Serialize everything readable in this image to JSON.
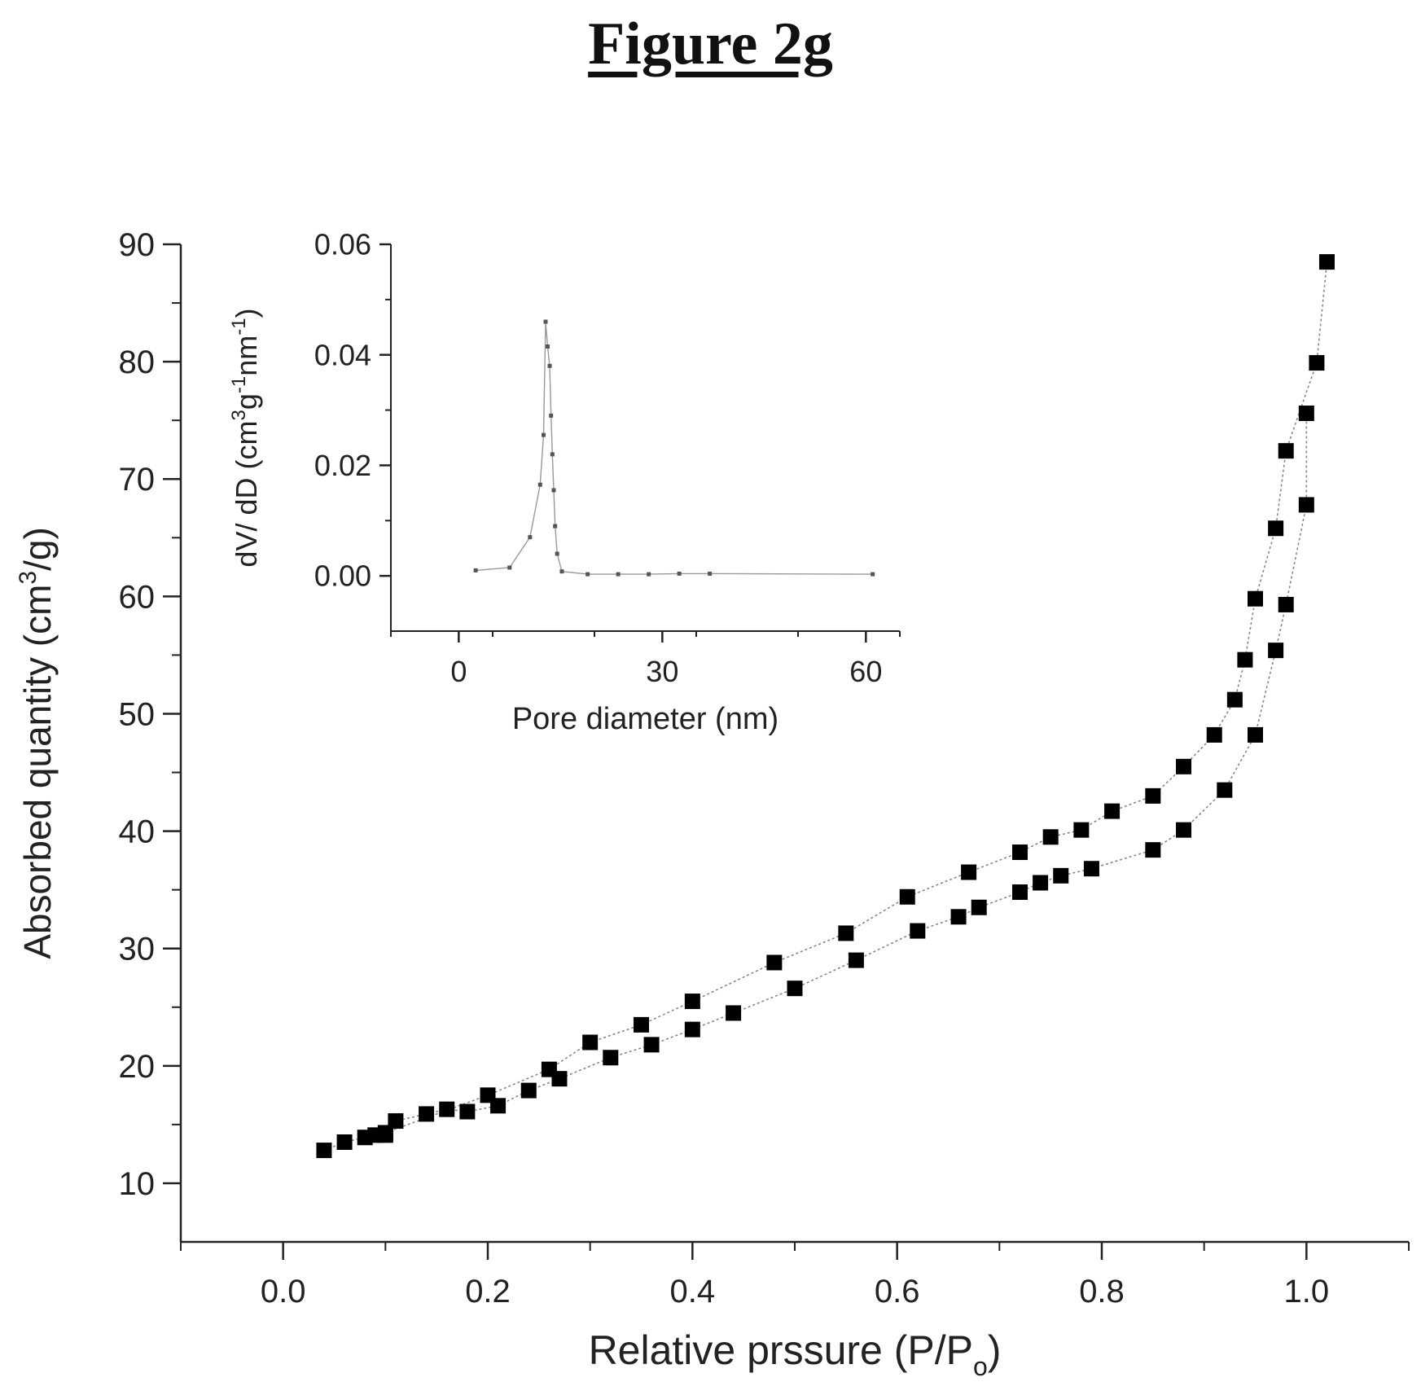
{
  "figure_title": "Figure 2g",
  "chart_data": [
    {
      "type": "line",
      "title": "",
      "xlabel": "Relative prssure (P/P",
      "xlabel_sub": "o",
      "xlabel_close": ")",
      "ylabel": "Absorbed quantity (cm",
      "ylabel_sup": "3",
      "ylabel_close": "/g)",
      "xlim": [
        -0.1,
        1.1
      ],
      "ylim": [
        5,
        90
      ],
      "xticks": [
        0.0,
        0.2,
        0.4,
        0.6,
        0.8,
        1.0
      ],
      "xtick_labels": [
        "0.0",
        "0.2",
        "0.4",
        "0.6",
        "0.8",
        "1.0"
      ],
      "yticks": [
        10,
        20,
        30,
        40,
        50,
        60,
        70,
        80,
        90
      ],
      "ytick_labels": [
        "10",
        "20",
        "30",
        "40",
        "50",
        "60",
        "70",
        "80",
        "90"
      ],
      "grid": false,
      "marker": "square",
      "color": "#000000",
      "series": [
        {
          "x": [
            0.04,
            0.06,
            0.08,
            0.09,
            0.1,
            0.2,
            0.26,
            0.3,
            0.35,
            0.4,
            0.48,
            0.55,
            0.61,
            0.67,
            0.72,
            0.75,
            0.78,
            0.81,
            0.85,
            0.88,
            0.91,
            0.93,
            0.94,
            0.95,
            0.97,
            0.98,
            1.01,
            1.02
          ],
          "y": [
            12.8,
            13.5,
            13.9,
            14.1,
            14.3,
            17.5,
            19.7,
            22.0,
            23.5,
            25.5,
            28.8,
            31.3,
            34.4,
            36.5,
            38.2,
            39.5,
            40.1,
            41.7,
            43.0,
            45.5,
            48.2,
            51.2,
            54.6,
            59.8,
            65.8,
            72.4,
            79.9,
            88.5
          ]
        },
        {
          "x": [
            0.1,
            0.11,
            0.14,
            0.16,
            0.18,
            0.21,
            0.24,
            0.27,
            0.32,
            0.36,
            0.4,
            0.44,
            0.5,
            0.56,
            0.62,
            0.66,
            0.68,
            0.72,
            0.74,
            0.76,
            0.79,
            0.85,
            0.88,
            0.92,
            0.95,
            0.97,
            0.98,
            1.0,
            1.0
          ],
          "y": [
            14.1,
            15.3,
            15.9,
            16.3,
            16.1,
            16.6,
            17.9,
            18.9,
            20.7,
            21.8,
            23.1,
            24.5,
            26.6,
            29.0,
            31.5,
            32.7,
            33.5,
            34.8,
            35.6,
            36.2,
            36.8,
            38.4,
            40.1,
            43.5,
            48.2,
            55.4,
            59.3,
            67.8,
            75.6
          ]
        }
      ]
    },
    {
      "type": "line",
      "title": "",
      "xlabel": "Pore diameter (nm)",
      "ylabel": "dV/ dD (cm",
      "ylabel_sup1": "3",
      "ylabel_mid": "g",
      "ylabel_sup2": "-1",
      "ylabel_mid2": "nm",
      "ylabel_sup3": "-1",
      "ylabel_close": ")",
      "xlim": [
        -10,
        65
      ],
      "ylim": [
        -0.01,
        0.06
      ],
      "xticks": [
        0,
        30,
        60
      ],
      "xtick_labels": [
        "0",
        "30",
        "60"
      ],
      "yticks": [
        0.0,
        0.02,
        0.04,
        0.06
      ],
      "ytick_labels": [
        "0.00",
        "0.02",
        "0.04",
        "0.06"
      ],
      "grid": false,
      "marker": "small-square",
      "color": "#555555",
      "series": [
        {
          "x": [
            2.5,
            7.5,
            10.5,
            12.0,
            12.5,
            12.8,
            13.1,
            13.4,
            13.6,
            13.8,
            14.0,
            14.2,
            14.5,
            15.2,
            19.0,
            23.5,
            28.0,
            32.5,
            37.0,
            61.0
          ],
          "y": [
            0.001,
            0.0015,
            0.007,
            0.0165,
            0.0255,
            0.046,
            0.0415,
            0.038,
            0.029,
            0.022,
            0.0155,
            0.009,
            0.004,
            0.0008,
            0.0003,
            0.0003,
            0.0003,
            0.0004,
            0.0004,
            0.0003
          ]
        }
      ]
    }
  ]
}
